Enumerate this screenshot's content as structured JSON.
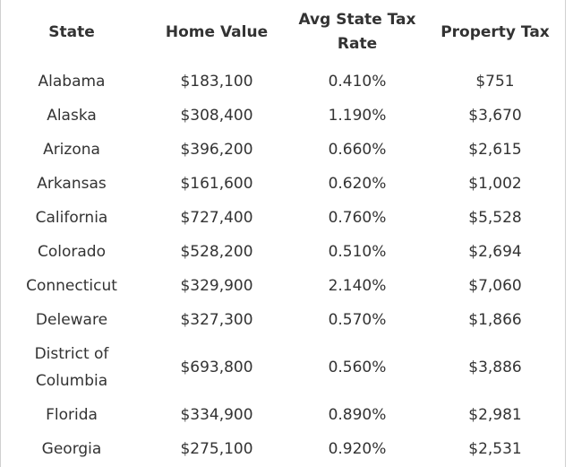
{
  "table": {
    "headers": [
      "State",
      "Home Value",
      "Avg State Tax Rate",
      "Property Tax"
    ],
    "header_lines": [
      [
        "State"
      ],
      [
        "Home Value"
      ],
      [
        "Avg State Tax",
        "Rate"
      ],
      [
        "Property Tax"
      ]
    ],
    "rows": [
      {
        "state": [
          "Alabama"
        ],
        "home_value": "$183,100",
        "tax_rate": "0.410%",
        "property_tax": "$751"
      },
      {
        "state": [
          "Alaska"
        ],
        "home_value": "$308,400",
        "tax_rate": "1.190%",
        "property_tax": "$3,670"
      },
      {
        "state": [
          "Arizona"
        ],
        "home_value": "$396,200",
        "tax_rate": "0.660%",
        "property_tax": "$2,615"
      },
      {
        "state": [
          "Arkansas"
        ],
        "home_value": "$161,600",
        "tax_rate": "0.620%",
        "property_tax": "$1,002"
      },
      {
        "state": [
          "California"
        ],
        "home_value": "$727,400",
        "tax_rate": "0.760%",
        "property_tax": "$5,528"
      },
      {
        "state": [
          "Colorado"
        ],
        "home_value": "$528,200",
        "tax_rate": "0.510%",
        "property_tax": "$2,694"
      },
      {
        "state": [
          "Connecticut"
        ],
        "home_value": "$329,900",
        "tax_rate": "2.140%",
        "property_tax": "$7,060"
      },
      {
        "state": [
          "Deleware"
        ],
        "home_value": "$327,300",
        "tax_rate": "0.570%",
        "property_tax": "$1,866"
      },
      {
        "state": [
          "District of",
          "Columbia"
        ],
        "home_value": "$693,800",
        "tax_rate": "0.560%",
        "property_tax": "$3,886"
      },
      {
        "state": [
          "Florida"
        ],
        "home_value": "$334,900",
        "tax_rate": "0.890%",
        "property_tax": "$2,981"
      },
      {
        "state": [
          "Georgia"
        ],
        "home_value": "$275,100",
        "tax_rate": "0.920%",
        "property_tax": "$2,531"
      }
    ]
  }
}
